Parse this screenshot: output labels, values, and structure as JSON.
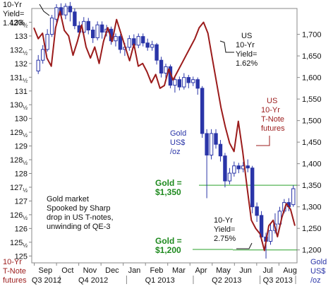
{
  "chart_data": {
    "type": "line",
    "annotation_texts": {
      "yield_start": [
        "10-Yr",
        "Yield=",
        "1.42%"
      ],
      "yield_peak": [
        "US",
        "10-Yr",
        "Yield=",
        "1.62%"
      ],
      "yield_end": [
        "10-Yr",
        "Yield=",
        "2.75%"
      ],
      "note_label": [
        "US",
        "10-Yr",
        "T-Note",
        "futures"
      ],
      "gold_label": [
        "Gold",
        "US$",
        "/oz"
      ],
      "gold_1350": [
        "Gold =",
        "$1,350"
      ],
      "gold_1200": [
        "Gold =",
        "$1,200"
      ],
      "commentary": [
        "Gold market",
        "Spooked by Sharp",
        "drop in US T-notes,",
        "unwinding of QE-3"
      ],
      "left_axis_corner": [
        "10-Yr",
        "T-Note",
        "futures"
      ],
      "right_axis_corner": [
        "Gold",
        "US$",
        "/oz"
      ]
    },
    "left_axis": {
      "range": [
        124.75,
        134.0
      ],
      "ticks": [
        {
          "v": 125,
          "l": "125"
        },
        {
          "v": 125.5,
          "l": "125½"
        },
        {
          "v": 126,
          "l": "126"
        },
        {
          "v": 126.5,
          "l": "126½"
        },
        {
          "v": 127,
          "l": "127"
        },
        {
          "v": 127.5,
          "l": "127½"
        },
        {
          "v": 128,
          "l": "128"
        },
        {
          "v": 128.5,
          "l": "128½"
        },
        {
          "v": 129,
          "l": "129"
        },
        {
          "v": 129.5,
          "l": "129½"
        },
        {
          "v": 130,
          "l": "130"
        },
        {
          "v": 130.5,
          "l": "130½"
        },
        {
          "v": 131,
          "l": "131"
        },
        {
          "v": 131.5,
          "l": "131½"
        },
        {
          "v": 132,
          "l": "132"
        },
        {
          "v": 132.5,
          "l": "132½"
        },
        {
          "v": 133,
          "l": "133"
        },
        {
          "v": 133.5,
          "l": "133½"
        }
      ]
    },
    "right_axis": {
      "range": [
        1170,
        1760
      ],
      "ticks": [
        1200,
        1250,
        1300,
        1350,
        1400,
        1450,
        1500,
        1550,
        1600,
        1650,
        1700
      ],
      "tick_labels": [
        "1,200",
        "1,250",
        "1,300",
        "1,350",
        "1,400",
        "1,450",
        "1,500",
        "1,550",
        "1,600",
        "1,650",
        "1,700"
      ]
    },
    "months": [
      "Sep",
      "Oct",
      "Nov",
      "Dec",
      "Jan",
      "Feb",
      "Mar",
      "Apr",
      "May",
      "Jun",
      "Jul",
      "Aug"
    ],
    "quarters": [
      "Q3 2012",
      "Q4 2012",
      "Q1 2013",
      "Q2 2013",
      "Q3 2013"
    ],
    "reference_lines": [
      {
        "name": "gold-1350-line",
        "value": 1350
      },
      {
        "name": "gold-1200-line",
        "value": 1200
      }
    ],
    "series": [
      {
        "color": "#9b1b1b",
        "axis": "left",
        "values": [
          133.3,
          132.9,
          133.1,
          132.2,
          131.9,
          133.3,
          133.9,
          133.2,
          133.0,
          132.3,
          132.8,
          133.4,
          132.6,
          132.2,
          132.6,
          132.0,
          132.8,
          133.3,
          132.8,
          133.6,
          133.1,
          132.6,
          132.1,
          132.7,
          131.9,
          132.0,
          131.7,
          131.3,
          131.6,
          131.1,
          131.2,
          131.8,
          131.4,
          131.7,
          132.0,
          132.3,
          132.6,
          132.9,
          133.3,
          133.5,
          133.1,
          132.2,
          131.3,
          130.4,
          129.7,
          129.1,
          128.8,
          129.9,
          128.8,
          127.5,
          126.3,
          126.0,
          125.8,
          125.2,
          126.1,
          126.3,
          125.7,
          126.4,
          126.9,
          126.7,
          126.1
        ]
      },
      {
        "color": "#2a35a8",
        "axis": "right",
        "candles": [
          {
            "o": 1615,
            "c": 1640,
            "h": 1652,
            "l": 1608
          },
          {
            "o": 1640,
            "c": 1665,
            "h": 1675,
            "l": 1632
          },
          {
            "o": 1665,
            "c": 1700,
            "h": 1712,
            "l": 1660
          },
          {
            "o": 1700,
            "c": 1738,
            "h": 1745,
            "l": 1694
          },
          {
            "o": 1735,
            "c": 1762,
            "h": 1770,
            "l": 1728
          },
          {
            "o": 1762,
            "c": 1745,
            "h": 1772,
            "l": 1738
          },
          {
            "o": 1745,
            "c": 1765,
            "h": 1772,
            "l": 1735
          },
          {
            "o": 1765,
            "c": 1752,
            "h": 1775,
            "l": 1730
          },
          {
            "o": 1752,
            "c": 1720,
            "h": 1760,
            "l": 1712
          },
          {
            "o": 1720,
            "c": 1705,
            "h": 1730,
            "l": 1695
          },
          {
            "o": 1705,
            "c": 1730,
            "h": 1740,
            "l": 1698
          },
          {
            "o": 1730,
            "c": 1710,
            "h": 1738,
            "l": 1700
          },
          {
            "o": 1710,
            "c": 1692,
            "h": 1718,
            "l": 1680
          },
          {
            "o": 1692,
            "c": 1722,
            "h": 1730,
            "l": 1686
          },
          {
            "o": 1722,
            "c": 1705,
            "h": 1730,
            "l": 1690
          },
          {
            "o": 1705,
            "c": 1712,
            "h": 1722,
            "l": 1695
          },
          {
            "o": 1712,
            "c": 1685,
            "h": 1718,
            "l": 1676
          },
          {
            "o": 1685,
            "c": 1695,
            "h": 1702,
            "l": 1672
          },
          {
            "o": 1695,
            "c": 1665,
            "h": 1700,
            "l": 1656
          },
          {
            "o": 1665,
            "c": 1670,
            "h": 1680,
            "l": 1650
          },
          {
            "o": 1670,
            "c": 1690,
            "h": 1698,
            "l": 1662
          },
          {
            "o": 1690,
            "c": 1675,
            "h": 1700,
            "l": 1668
          },
          {
            "o": 1675,
            "c": 1695,
            "h": 1702,
            "l": 1668
          },
          {
            "o": 1695,
            "c": 1680,
            "h": 1702,
            "l": 1672
          },
          {
            "o": 1680,
            "c": 1670,
            "h": 1690,
            "l": 1662
          },
          {
            "o": 1670,
            "c": 1676,
            "h": 1685,
            "l": 1662
          },
          {
            "o": 1676,
            "c": 1640,
            "h": 1680,
            "l": 1630
          },
          {
            "o": 1640,
            "c": 1610,
            "h": 1648,
            "l": 1600
          },
          {
            "o": 1610,
            "c": 1625,
            "h": 1632,
            "l": 1598
          },
          {
            "o": 1625,
            "c": 1582,
            "h": 1630,
            "l": 1575
          },
          {
            "o": 1582,
            "c": 1595,
            "h": 1602,
            "l": 1565
          },
          {
            "o": 1595,
            "c": 1578,
            "h": 1602,
            "l": 1570
          },
          {
            "o": 1578,
            "c": 1600,
            "h": 1610,
            "l": 1572
          },
          {
            "o": 1600,
            "c": 1588,
            "h": 1606,
            "l": 1575
          },
          {
            "o": 1588,
            "c": 1595,
            "h": 1602,
            "l": 1580
          },
          {
            "o": 1595,
            "c": 1575,
            "h": 1600,
            "l": 1560
          },
          {
            "o": 1575,
            "c": 1470,
            "h": 1580,
            "l": 1460
          },
          {
            "o": 1470,
            "c": 1420,
            "h": 1480,
            "l": 1320
          },
          {
            "o": 1420,
            "c": 1470,
            "h": 1480,
            "l": 1410
          },
          {
            "o": 1470,
            "c": 1445,
            "h": 1480,
            "l": 1435
          },
          {
            "o": 1445,
            "c": 1418,
            "h": 1455,
            "l": 1405
          },
          {
            "o": 1418,
            "c": 1360,
            "h": 1425,
            "l": 1345
          },
          {
            "o": 1360,
            "c": 1378,
            "h": 1390,
            "l": 1352
          },
          {
            "o": 1378,
            "c": 1395,
            "h": 1405,
            "l": 1370
          },
          {
            "o": 1395,
            "c": 1388,
            "h": 1402,
            "l": 1378
          },
          {
            "o": 1388,
            "c": 1395,
            "h": 1404,
            "l": 1380
          },
          {
            "o": 1395,
            "c": 1390,
            "h": 1410,
            "l": 1380
          },
          {
            "o": 1390,
            "c": 1300,
            "h": 1395,
            "l": 1285
          },
          {
            "o": 1300,
            "c": 1280,
            "h": 1310,
            "l": 1265
          },
          {
            "o": 1280,
            "c": 1230,
            "h": 1290,
            "l": 1220
          },
          {
            "o": 1230,
            "c": 1220,
            "h": 1240,
            "l": 1180
          },
          {
            "o": 1220,
            "c": 1245,
            "h": 1262,
            "l": 1212
          },
          {
            "o": 1245,
            "c": 1260,
            "h": 1285,
            "l": 1238
          },
          {
            "o": 1260,
            "c": 1290,
            "h": 1300,
            "l": 1255
          },
          {
            "o": 1290,
            "c": 1310,
            "h": 1318,
            "l": 1285
          },
          {
            "o": 1310,
            "c": 1300,
            "h": 1320,
            "l": 1290
          },
          {
            "o": 1305,
            "c": 1342,
            "h": 1350,
            "l": 1300
          }
        ]
      }
    ]
  }
}
